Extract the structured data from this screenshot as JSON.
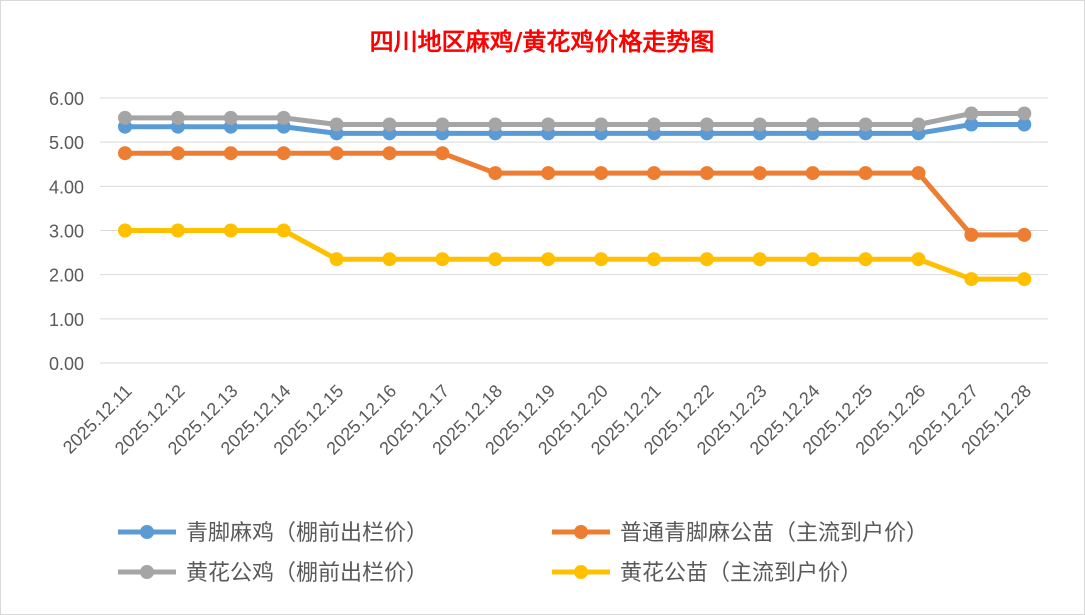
{
  "chart_data": {
    "type": "line",
    "title": "四川地区麻鸡/黄花鸡价格走势图",
    "xlabel": "",
    "ylabel": "",
    "ylim": [
      0,
      6
    ],
    "y_ticks": [
      "0.00",
      "1.00",
      "2.00",
      "3.00",
      "4.00",
      "5.00",
      "6.00"
    ],
    "grid": true,
    "legend_position": "bottom",
    "categories": [
      "2025.12.11",
      "2025.12.12",
      "2025.12.13",
      "2025.12.14",
      "2025.12.15",
      "2025.12.16",
      "2025.12.17",
      "2025.12.18",
      "2025.12.19",
      "2025.12.20",
      "2025.12.21",
      "2025.12.22",
      "2025.12.23",
      "2025.12.24",
      "2025.12.25",
      "2025.12.26",
      "2025.12.27",
      "2025.12.28"
    ],
    "series": [
      {
        "name": "青脚麻鸡（棚前出栏价）",
        "color": "#5B9BD5",
        "values": [
          5.35,
          5.35,
          5.35,
          5.35,
          5.2,
          5.2,
          5.2,
          5.2,
          5.2,
          5.2,
          5.2,
          5.2,
          5.2,
          5.2,
          5.2,
          5.2,
          5.4,
          5.4
        ]
      },
      {
        "name": "普通青脚麻公苗（主流到户价）",
        "color": "#ED7D31",
        "values": [
          4.75,
          4.75,
          4.75,
          4.75,
          4.75,
          4.75,
          4.75,
          4.3,
          4.3,
          4.3,
          4.3,
          4.3,
          4.3,
          4.3,
          4.3,
          4.3,
          2.9,
          2.9
        ]
      },
      {
        "name": "黄花公鸡（棚前出栏价）",
        "color": "#A5A5A5",
        "values": [
          5.55,
          5.55,
          5.55,
          5.55,
          5.4,
          5.4,
          5.4,
          5.4,
          5.4,
          5.4,
          5.4,
          5.4,
          5.4,
          5.4,
          5.4,
          5.4,
          5.65,
          5.65
        ]
      },
      {
        "name": "黄花公苗（主流到户价）",
        "color": "#FFC000",
        "values": [
          3.0,
          3.0,
          3.0,
          3.0,
          2.35,
          2.35,
          2.35,
          2.35,
          2.35,
          2.35,
          2.35,
          2.35,
          2.35,
          2.35,
          2.35,
          2.35,
          1.9,
          1.9
        ]
      }
    ],
    "colors": {
      "title": "#FF0000",
      "gridline": "#D9D9D9",
      "axis_text": "#595959"
    }
  }
}
